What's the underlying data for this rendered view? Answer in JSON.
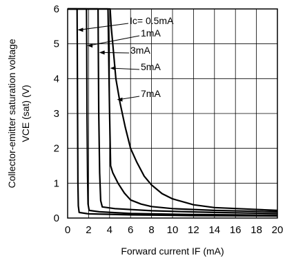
{
  "chart_data": {
    "type": "line",
    "xlabel": "Forward current IF (mA)",
    "ylabel_lines": [
      "Collector-emitter saturation voltage",
      "VCE (sat) (V)"
    ],
    "xlim": [
      0,
      20
    ],
    "ylim": [
      0,
      6
    ],
    "x_ticks": [
      0,
      2,
      4,
      6,
      8,
      10,
      12,
      14,
      16,
      18,
      20
    ],
    "y_ticks": [
      0,
      1,
      2,
      3,
      4,
      5,
      6
    ],
    "grid": true,
    "series": [
      {
        "name": "Ic= 0.5mA",
        "points": [
          [
            0,
            6
          ],
          [
            0.9,
            6
          ],
          [
            0.92,
            5
          ],
          [
            0.95,
            3
          ],
          [
            0.98,
            1
          ],
          [
            1.02,
            0.35
          ],
          [
            1.1,
            0.16
          ],
          [
            2,
            0.12
          ],
          [
            6,
            0.09
          ],
          [
            12,
            0.07
          ],
          [
            20,
            0.06
          ]
        ]
      },
      {
        "name": "1mA",
        "points": [
          [
            0,
            6
          ],
          [
            1.8,
            6
          ],
          [
            1.82,
            5
          ],
          [
            1.85,
            3
          ],
          [
            1.9,
            1.2
          ],
          [
            1.95,
            0.4
          ],
          [
            2.05,
            0.22
          ],
          [
            3,
            0.18
          ],
          [
            6,
            0.13
          ],
          [
            12,
            0.1
          ],
          [
            20,
            0.08
          ]
        ]
      },
      {
        "name": "3mA",
        "points": [
          [
            0,
            6
          ],
          [
            2.9,
            6
          ],
          [
            2.92,
            5
          ],
          [
            2.97,
            3
          ],
          [
            3.05,
            1.3
          ],
          [
            3.15,
            0.5
          ],
          [
            3.3,
            0.32
          ],
          [
            4.5,
            0.27
          ],
          [
            8,
            0.21
          ],
          [
            14,
            0.16
          ],
          [
            20,
            0.13
          ]
        ]
      },
      {
        "name": "5mA",
        "points": [
          [
            0,
            6
          ],
          [
            3.85,
            6
          ],
          [
            3.9,
            5
          ],
          [
            3.95,
            4
          ],
          [
            4.0,
            3
          ],
          [
            4.05,
            2.2
          ],
          [
            4.1,
            1.5
          ],
          [
            4.3,
            1.3
          ],
          [
            4.8,
            1.0
          ],
          [
            5.4,
            0.72
          ],
          [
            6,
            0.52
          ],
          [
            7,
            0.4
          ],
          [
            8,
            0.33
          ],
          [
            10,
            0.27
          ],
          [
            14,
            0.22
          ],
          [
            20,
            0.18
          ]
        ]
      },
      {
        "name": "7mA",
        "points": [
          [
            0,
            6
          ],
          [
            4.05,
            6
          ],
          [
            4.15,
            5.5
          ],
          [
            4.3,
            5
          ],
          [
            4.6,
            4
          ],
          [
            5.0,
            3.3
          ],
          [
            5.5,
            2.6
          ],
          [
            6,
            2
          ],
          [
            6.6,
            1.6
          ],
          [
            7.3,
            1.2
          ],
          [
            8,
            0.95
          ],
          [
            9,
            0.7
          ],
          [
            10,
            0.55
          ],
          [
            12,
            0.38
          ],
          [
            14,
            0.3
          ],
          [
            17,
            0.26
          ],
          [
            20,
            0.22
          ]
        ]
      }
    ],
    "annotations": [
      {
        "text": "Ic= 0.5mA",
        "series": 0,
        "target": [
          0.95,
          5.4
        ]
      },
      {
        "text": "1mA",
        "series": 1,
        "target": [
          1.85,
          4.95
        ]
      },
      {
        "text": "3mA",
        "series": 2,
        "target": [
          3.0,
          4.75
        ]
      },
      {
        "text": "5mA",
        "series": 3,
        "target": [
          4.05,
          4.3
        ]
      },
      {
        "text": "7mA",
        "series": 4,
        "target": [
          4.7,
          3.4
        ]
      }
    ]
  }
}
